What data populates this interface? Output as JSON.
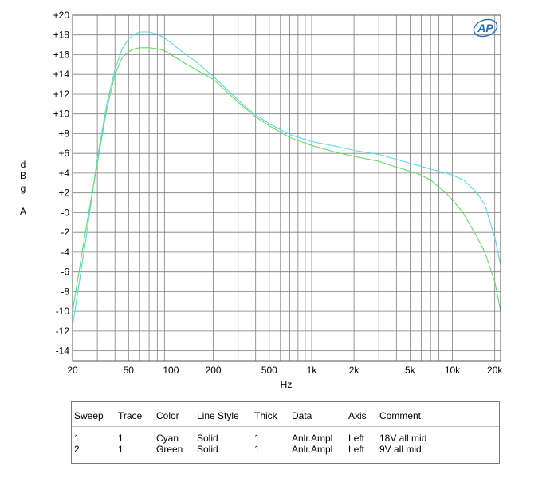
{
  "chart_data": {
    "type": "line",
    "title": "",
    "xlabel": "Hz",
    "ylabel": "dBgA",
    "x_scale": "log",
    "xlim": [
      20,
      22000
    ],
    "ylim": [
      -15,
      20
    ],
    "grid": true,
    "legend_placement": "table-below",
    "logo_text": "AP",
    "x_ticks": [
      {
        "value": 20,
        "label": "20"
      },
      {
        "value": 50,
        "label": "50"
      },
      {
        "value": 100,
        "label": "100"
      },
      {
        "value": 200,
        "label": "200"
      },
      {
        "value": 500,
        "label": "500"
      },
      {
        "value": 1000,
        "label": "1k"
      },
      {
        "value": 2000,
        "label": "2k"
      },
      {
        "value": 5000,
        "label": "5k"
      },
      {
        "value": 10000,
        "label": "10k"
      },
      {
        "value": 20000,
        "label": "20k"
      }
    ],
    "y_ticks": [
      {
        "value": 20,
        "label": "+20"
      },
      {
        "value": 18,
        "label": "+18"
      },
      {
        "value": 16,
        "label": "+16"
      },
      {
        "value": 14,
        "label": "+14"
      },
      {
        "value": 12,
        "label": "+12"
      },
      {
        "value": 10,
        "label": "+10"
      },
      {
        "value": 8,
        "label": "+8"
      },
      {
        "value": 6,
        "label": "+6"
      },
      {
        "value": 4,
        "label": "+4"
      },
      {
        "value": 2,
        "label": "+2"
      },
      {
        "value": 0,
        "label": "-0"
      },
      {
        "value": -2,
        "label": "-2"
      },
      {
        "value": -4,
        "label": "-4"
      },
      {
        "value": -6,
        "label": "-6"
      },
      {
        "value": -8,
        "label": "-8"
      },
      {
        "value": -10,
        "label": "-10"
      },
      {
        "value": -12,
        "label": "-12"
      },
      {
        "value": -14,
        "label": "-14"
      }
    ],
    "series": [
      {
        "name": "18V all mid",
        "color": "#5ad8e6",
        "x": [
          20,
          25,
          30,
          35,
          40,
          45,
          50,
          55,
          60,
          65,
          70,
          80,
          90,
          100,
          120,
          150,
          200,
          300,
          400,
          500,
          700,
          1000,
          1500,
          2000,
          3000,
          4000,
          5000,
          6000,
          7000,
          8000,
          9000,
          10000,
          12000,
          15000,
          17000,
          20000,
          22000
        ],
        "y": [
          -11.5,
          -2.5,
          5.5,
          11,
          14.5,
          16.6,
          17.6,
          18.1,
          18.3,
          18.3,
          18.3,
          18.1,
          17.7,
          17.2,
          16.3,
          15.3,
          13.8,
          11.4,
          9.9,
          9.0,
          7.9,
          7.2,
          6.7,
          6.3,
          5.9,
          5.4,
          5.0,
          4.7,
          4.4,
          4.2,
          4.0,
          3.8,
          3.3,
          2.0,
          0.8,
          -2.5,
          -5.3
        ]
      },
      {
        "name": "9V all mid",
        "color": "#66d966",
        "x": [
          20,
          25,
          30,
          35,
          40,
          45,
          50,
          55,
          60,
          65,
          70,
          80,
          90,
          100,
          120,
          150,
          200,
          300,
          400,
          500,
          700,
          1000,
          1500,
          2000,
          3000,
          4000,
          5000,
          6000,
          7000,
          8000,
          9000,
          10000,
          12000,
          15000,
          17000,
          20000,
          22000
        ],
        "y": [
          -10,
          -1.5,
          5,
          10.5,
          14.0,
          15.7,
          16.3,
          16.6,
          16.7,
          16.7,
          16.7,
          16.6,
          16.4,
          16.0,
          15.3,
          14.5,
          13.5,
          11.2,
          9.7,
          8.8,
          7.6,
          6.8,
          6.1,
          5.7,
          5.2,
          4.6,
          4.2,
          3.8,
          3.3,
          2.6,
          2.0,
          1.3,
          -0.1,
          -2.5,
          -4.0,
          -7.0,
          -10.0
        ]
      }
    ],
    "legend_table": {
      "headers": [
        "Sweep",
        "Trace",
        "Color",
        "Line Style",
        "Thick",
        "Data",
        "Axis",
        "Comment"
      ],
      "rows": [
        [
          "1",
          "1",
          "Cyan",
          "Solid",
          "1",
          "Anlr.Ampl",
          "Left",
          "18V all mid"
        ],
        [
          "2",
          "1",
          "Green",
          "Solid",
          "1",
          "Anlr.Ampl",
          "Left",
          "9V all mid"
        ]
      ]
    }
  }
}
